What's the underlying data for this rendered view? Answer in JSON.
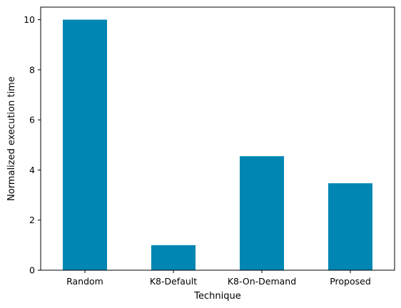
{
  "chart_data": {
    "type": "bar",
    "title": "",
    "xlabel": "Technique",
    "ylabel": "Normalized execution time",
    "categories": [
      "Random",
      "K8-Default",
      "K8-On-Demand",
      "Proposed"
    ],
    "values": [
      10.0,
      1.0,
      4.55,
      3.47
    ],
    "ylim": [
      0,
      10.5
    ],
    "yticks": [
      0,
      2,
      4,
      6,
      8,
      10
    ],
    "grid": false,
    "bar_color": "#0086b3"
  }
}
